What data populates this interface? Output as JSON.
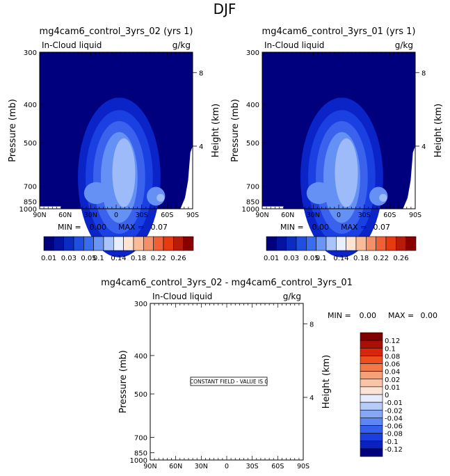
{
  "figure_title": "DJF",
  "chart_data": [
    {
      "type": "contour",
      "title": "mg4cam6_control_3yrs_02 (yrs 1)",
      "variable": "In-Cloud liquid",
      "units": "g/kg",
      "ylabel": "Pressure (mb)",
      "y2label": "Height (km)",
      "x_ticks": [
        "90N",
        "60N",
        "30N",
        "0",
        "30S",
        "60S",
        "90S"
      ],
      "y_ticks": [
        "300",
        "400",
        "500",
        "700",
        "850",
        "1000"
      ],
      "y2_ticks": [
        "8",
        "4"
      ],
      "stats": {
        "min_label": "MIN =",
        "min": "0.00",
        "max_label": "MAX =",
        "max": "0.07"
      },
      "colorbar_levels": [
        "0.01",
        "0.03",
        "0.05",
        "0.1",
        "0.14",
        "0.18",
        "0.22",
        "0.26"
      ]
    },
    {
      "type": "contour",
      "title": "mg4cam6_control_3yrs_01 (yrs 1)",
      "variable": "In-Cloud liquid",
      "units": "g/kg",
      "ylabel": "Pressure (mb)",
      "y2label": "Height (km)",
      "x_ticks": [
        "90N",
        "60N",
        "30N",
        "0",
        "30S",
        "60S",
        "90S"
      ],
      "y_ticks": [
        "300",
        "400",
        "500",
        "700",
        "850",
        "1000"
      ],
      "y2_ticks": [
        "8",
        "4"
      ],
      "stats": {
        "min_label": "MIN =",
        "min": "0.00",
        "max_label": "MAX =",
        "max": "0.07"
      },
      "colorbar_levels": [
        "0.01",
        "0.03",
        "0.05",
        "0.1",
        "0.14",
        "0.18",
        "0.22",
        "0.26"
      ]
    },
    {
      "type": "contour",
      "title": "mg4cam6_control_3yrs_02 - mg4cam6_control_3yrs_01",
      "variable": "In-Cloud liquid",
      "units": "g/kg",
      "ylabel": "Pressure (mb)",
      "y2label": "Height (km)",
      "x_ticks": [
        "90N",
        "60N",
        "30N",
        "0",
        "30S",
        "60S",
        "90S"
      ],
      "y_ticks": [
        "300",
        "400",
        "500",
        "700",
        "850",
        "1000"
      ],
      "y2_ticks": [
        "8",
        "4"
      ],
      "stats": {
        "min_label": "MIN =",
        "min": "0.00",
        "max_label": "MAX =",
        "max": "0.00"
      },
      "annotation": "CONSTANT FIELD - VALUE IS 0",
      "colorbar_levels": [
        "0.12",
        "0.1",
        "0.08",
        "0.06",
        "0.04",
        "0.02",
        "0.01",
        "0",
        "-0.01",
        "-0.02",
        "-0.04",
        "-0.06",
        "-0.08",
        "-0.1",
        "-0.12"
      ]
    }
  ],
  "colors": {
    "top_scale": [
      "#00007f",
      "#0414a0",
      "#0a2dc0",
      "#1f4fe0",
      "#3a6cf0",
      "#6b95f4",
      "#a8c4fa",
      "#e7eefc",
      "#fde3d3",
      "#f9bc9b",
      "#f49068",
      "#ef6036",
      "#e53a12",
      "#b71c0b",
      "#880000"
    ],
    "diff_scale": [
      "#00007f",
      "#0b22c2",
      "#1a3fe0",
      "#3560ee",
      "#5c86f3",
      "#86a6f6",
      "#b5cbfa",
      "#e6ecfb",
      "#fbe4d6",
      "#f9c4a8",
      "#f5a078",
      "#f17a48",
      "#ee4f1e",
      "#d6270c",
      "#a80f05",
      "#800000"
    ],
    "field_levels": [
      "#00007f",
      "#0a24c8",
      "#1a40e2",
      "#3b62ec",
      "#6590f4",
      "#9ebbf9"
    ]
  }
}
